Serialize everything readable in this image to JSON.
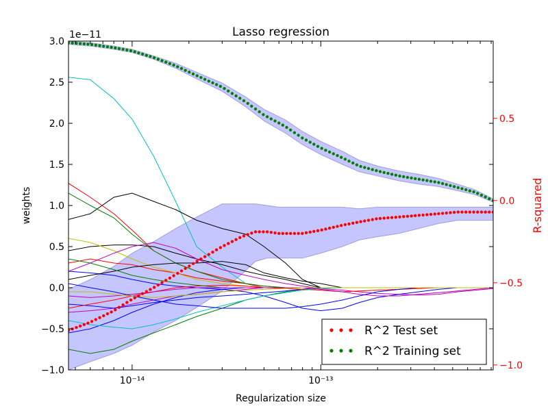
{
  "chart_data": {
    "type": "line",
    "title": "Lasso regression",
    "xlabel": "Regularization size",
    "ylabel_left": "weights",
    "ylabel_right": "R-squared",
    "y_offset_text": "1e−11",
    "x_scale": "log",
    "xlim": [
      4.6e-15,
      8.2e-13
    ],
    "ylim_left": [
      -1.0,
      3.0
    ],
    "ylim_right": [
      -1.03,
      0.97
    ],
    "x_ticks": [
      {
        "value": 1e-14,
        "label": "10⁻¹⁴"
      },
      {
        "value": 1e-13,
        "label": "10⁻¹³"
      }
    ],
    "y_ticks_left": [
      {
        "value": 3.0,
        "label": "3.0"
      },
      {
        "value": 2.5,
        "label": "2.5"
      },
      {
        "value": 2.0,
        "label": "2.0"
      },
      {
        "value": 1.5,
        "label": "1.5"
      },
      {
        "value": 1.0,
        "label": "1.0"
      },
      {
        "value": 0.5,
        "label": "0.5"
      },
      {
        "value": 0.0,
        "label": "0.0"
      },
      {
        "value": -0.5,
        "label": "−0.5"
      },
      {
        "value": -1.0,
        "label": "−1.0"
      }
    ],
    "y_ticks_right": [
      {
        "value": 0.5,
        "label": "0.5"
      },
      {
        "value": 0.0,
        "label": "0.0"
      },
      {
        "value": -0.5,
        "label": "−0.5"
      },
      {
        "value": -1.0,
        "label": "−1.0"
      }
    ],
    "legend": {
      "placement": "lower-right",
      "entries": [
        {
          "label": "R^2 Test set",
          "color": "#ff0000"
        },
        {
          "label": "R^2 Training set",
          "color": "#007f00"
        }
      ]
    },
    "training_r2": {
      "name": "R^2 Training set",
      "color": "#007f00",
      "band_color": "#8080ff",
      "x": [
        4.6e-15,
        6e-15,
        8e-15,
        1e-14,
        1.3e-14,
        1.7e-14,
        2.2e-14,
        3e-14,
        4e-14,
        5e-14,
        6.5e-14,
        8e-14,
        1e-13,
        1.3e-13,
        1.6e-13,
        2e-13,
        2.6e-13,
        3.3e-13,
        4.2e-13,
        5.3e-13,
        6.6e-13,
        8.2e-13
      ],
      "y": [
        0.96,
        0.95,
        0.93,
        0.91,
        0.87,
        0.82,
        0.76,
        0.69,
        0.6,
        0.52,
        0.45,
        0.38,
        0.32,
        0.26,
        0.21,
        0.18,
        0.15,
        0.13,
        0.11,
        0.08,
        0.05,
        0.0
      ],
      "band": [
        0.01,
        0.01,
        0.01,
        0.01,
        0.01,
        0.015,
        0.02,
        0.025,
        0.03,
        0.035,
        0.04,
        0.04,
        0.04,
        0.04,
        0.035,
        0.03,
        0.03,
        0.03,
        0.025,
        0.02,
        0.015,
        0.01
      ]
    },
    "test_r2": {
      "name": "R^2 Test set",
      "color": "#ff0000",
      "band_color": "#8080ff",
      "x": [
        4.6e-15,
        6e-15,
        8e-15,
        1e-14,
        1.3e-14,
        1.7e-14,
        2.2e-14,
        3e-14,
        3.8e-14,
        4.5e-14,
        5.2e-14,
        6e-14,
        7e-14,
        8e-14,
        1e-13,
        1.3e-13,
        1.6e-13,
        2e-13,
        2.6e-13,
        3.3e-13,
        4.2e-13,
        5.3e-13,
        6.6e-13,
        8.2e-13
      ],
      "y": [
        -0.79,
        -0.74,
        -0.67,
        -0.6,
        -0.53,
        -0.45,
        -0.37,
        -0.28,
        -0.22,
        -0.19,
        -0.19,
        -0.2,
        -0.2,
        -0.2,
        -0.18,
        -0.15,
        -0.13,
        -0.11,
        -0.1,
        -0.09,
        -0.08,
        -0.07,
        -0.07,
        -0.07
      ],
      "band_upper": [
        -0.54,
        -0.48,
        -0.4,
        -0.32,
        -0.25,
        -0.17,
        -0.1,
        -0.02,
        -0.02,
        -0.02,
        -0.03,
        -0.04,
        -0.04,
        -0.04,
        -0.04,
        -0.04,
        -0.05,
        -0.04,
        -0.04,
        -0.04,
        -0.04,
        -0.04,
        -0.04,
        -0.04
      ],
      "band_lower": [
        -1.03,
        -0.98,
        -0.93,
        -0.88,
        -0.8,
        -0.73,
        -0.65,
        -0.55,
        -0.45,
        -0.37,
        -0.35,
        -0.35,
        -0.35,
        -0.35,
        -0.32,
        -0.28,
        -0.24,
        -0.22,
        -0.2,
        -0.17,
        -0.14,
        -0.12,
        -0.12,
        -0.12
      ]
    },
    "weight_paths": {
      "unit": "1e-11",
      "x": [
        4.6e-15,
        6e-15,
        8e-15,
        1e-14,
        1.3e-14,
        1.7e-14,
        2.2e-14,
        3e-14,
        4e-14,
        5e-14,
        6.5e-14,
        8e-14,
        1e-13,
        1.3e-13,
        1.6e-13,
        2e-13,
        2.6e-13,
        3.3e-13,
        4.2e-13,
        5.3e-13,
        6.6e-13,
        8.2e-13
      ],
      "series": [
        {
          "color": "#00bfbf",
          "values": [
            2.56,
            2.53,
            2.3,
            2.05,
            1.6,
            1.05,
            0.5,
            0.25,
            0.05,
            0.0,
            0.0,
            0.0,
            0.0,
            0.0,
            0.0,
            0.0,
            0.0,
            0.0,
            0.0,
            0.0,
            0.0,
            0.0
          ]
        },
        {
          "color": "#000000",
          "values": [
            0.83,
            0.9,
            1.1,
            1.15,
            1.05,
            0.95,
            0.82,
            0.72,
            0.65,
            0.5,
            0.3,
            0.1,
            0.0,
            0.0,
            0.0,
            0.0,
            0.0,
            0.0,
            0.0,
            0.0,
            0.0,
            0.0
          ]
        },
        {
          "color": "#000000",
          "values": [
            0.45,
            0.5,
            0.52,
            0.52,
            0.5,
            0.42,
            0.35,
            0.28,
            0.2,
            0.15,
            0.1,
            0.05,
            0.0,
            0.0,
            0.0,
            0.0,
            0.0,
            0.0,
            0.0,
            0.0,
            0.0,
            0.0
          ]
        },
        {
          "color": "#ff0000",
          "values": [
            1.27,
            1.1,
            0.9,
            0.7,
            0.45,
            0.3,
            0.2,
            0.12,
            0.05,
            0.0,
            0.0,
            0.0,
            0.0,
            0.0,
            0.0,
            0.0,
            0.0,
            0.0,
            0.0,
            0.0,
            0.0,
            0.0
          ]
        },
        {
          "color": "#ff0000",
          "values": [
            0.3,
            0.35,
            0.3,
            0.28,
            0.22,
            0.18,
            0.12,
            0.08,
            0.05,
            0.02,
            0.0,
            0.0,
            0.0,
            0.0,
            0.0,
            0.0,
            0.0,
            0.0,
            0.0,
            0.0,
            0.0,
            0.0
          ]
        },
        {
          "color": "#007f00",
          "values": [
            1.15,
            1.0,
            0.85,
            0.65,
            0.45,
            0.3,
            0.2,
            0.1,
            0.05,
            0.02,
            0.0,
            0.0,
            0.0,
            0.0,
            0.0,
            0.0,
            0.0,
            0.0,
            0.0,
            0.0,
            0.0,
            0.0
          ]
        },
        {
          "color": "#007f00",
          "values": [
            -0.75,
            -0.8,
            -0.75,
            -0.65,
            -0.55,
            -0.45,
            -0.35,
            -0.25,
            -0.15,
            -0.1,
            -0.05,
            -0.02,
            0.0,
            0.0,
            0.0,
            0.0,
            0.0,
            0.0,
            0.0,
            0.0,
            0.0,
            0.0
          ]
        },
        {
          "color": "#bfbf00",
          "values": [
            0.6,
            0.55,
            0.45,
            0.35,
            0.25,
            0.18,
            0.1,
            0.05,
            0.02,
            0.0,
            0.0,
            0.0,
            0.0,
            0.0,
            0.0,
            0.0,
            0.0,
            0.0,
            0.0,
            0.0,
            0.0,
            0.0
          ]
        },
        {
          "color": "#bf00bf",
          "values": [
            0.2,
            0.3,
            0.42,
            0.5,
            0.55,
            0.48,
            0.35,
            0.22,
            0.15,
            0.1,
            0.05,
            0.02,
            -0.01,
            -0.03,
            -0.05,
            -0.07,
            -0.08,
            -0.09,
            -0.08,
            -0.05,
            -0.03,
            -0.01
          ]
        },
        {
          "color": "#bf00bf",
          "values": [
            -0.3,
            -0.28,
            -0.25,
            -0.2,
            -0.15,
            -0.1,
            -0.08,
            -0.05,
            -0.02,
            0.0,
            0.0,
            0.0,
            0.0,
            0.0,
            0.0,
            0.0,
            0.0,
            0.0,
            0.0,
            0.0,
            0.0,
            0.0
          ]
        },
        {
          "color": "#0000ff",
          "values": [
            0.2,
            0.18,
            0.15,
            0.1,
            0.05,
            0.02,
            0.0,
            -0.02,
            -0.05,
            -0.1,
            -0.18,
            -0.25,
            -0.28,
            -0.25,
            -0.18,
            -0.12,
            -0.08,
            -0.05,
            -0.02,
            0.0,
            0.0,
            0.0
          ]
        },
        {
          "color": "#0000ff",
          "values": [
            -0.55,
            -0.5,
            -0.4,
            -0.3,
            -0.2,
            -0.12,
            -0.06,
            -0.02,
            0.0,
            0.0,
            0.0,
            0.0,
            0.0,
            0.0,
            0.0,
            0.0,
            0.0,
            0.0,
            0.0,
            0.0,
            0.0,
            0.0
          ]
        },
        {
          "color": "#0000ff",
          "values": [
            -0.2,
            -0.22,
            -0.25,
            -0.22,
            -0.18,
            -0.15,
            -0.12,
            -0.1,
            -0.08,
            -0.06,
            -0.04,
            -0.02,
            0.0,
            0.0,
            0.0,
            0.0,
            0.0,
            0.0,
            0.0,
            0.0,
            0.0,
            0.0
          ]
        },
        {
          "color": "#000000",
          "values": [
            0.1,
            0.15,
            0.2,
            0.25,
            0.28,
            0.3,
            0.3,
            0.32,
            0.28,
            0.18,
            0.12,
            0.08,
            0.05,
            0.0,
            0.0,
            0.0,
            0.0,
            0.0,
            0.0,
            0.0,
            0.0,
            0.0
          ]
        },
        {
          "color": "#ff0000",
          "values": [
            -0.25,
            -0.2,
            -0.15,
            -0.1,
            -0.05,
            0.0,
            0.02,
            0.03,
            0.02,
            0.0,
            -0.01,
            -0.02,
            -0.03,
            -0.05,
            -0.04,
            -0.03,
            -0.02,
            -0.01,
            0.0,
            0.0,
            0.0,
            0.0
          ]
        },
        {
          "color": "#007f00",
          "values": [
            0.35,
            0.3,
            0.22,
            0.15,
            0.1,
            0.06,
            0.03,
            0.0,
            0.0,
            0.0,
            0.0,
            0.0,
            0.0,
            0.0,
            0.0,
            0.0,
            0.0,
            0.0,
            0.0,
            0.0,
            0.0,
            0.0
          ]
        },
        {
          "color": "#00bfbf",
          "values": [
            -0.4,
            -0.45,
            -0.48,
            -0.5,
            -0.45,
            -0.38,
            -0.3,
            -0.22,
            -0.15,
            -0.1,
            -0.06,
            -0.03,
            -0.01,
            0.0,
            0.0,
            0.0,
            0.0,
            0.0,
            0.0,
            0.0,
            0.0,
            0.0
          ]
        },
        {
          "color": "#bf00bf",
          "values": [
            -0.1,
            -0.12,
            -0.1,
            -0.08,
            -0.05,
            -0.02,
            0.0,
            0.0,
            0.0,
            0.0,
            0.0,
            0.0,
            -0.02,
            -0.05,
            -0.08,
            -0.1,
            -0.1,
            -0.08,
            -0.06,
            -0.04,
            -0.02,
            0.0
          ]
        },
        {
          "color": "#0000ff",
          "values": [
            0.05,
            0.0,
            -0.05,
            -0.1,
            -0.15,
            -0.2,
            -0.22,
            -0.25,
            -0.25,
            -0.25,
            -0.25,
            -0.23,
            -0.2,
            -0.15,
            -0.1,
            -0.05,
            -0.02,
            0.0,
            0.0,
            0.0,
            0.0,
            0.0
          ]
        },
        {
          "color": "#bfbf00",
          "values": [
            -0.05,
            -0.05,
            -0.08,
            -0.1,
            -0.12,
            -0.1,
            -0.08,
            -0.05,
            -0.03,
            -0.02,
            -0.01,
            0.0,
            0.0,
            0.0,
            0.0,
            0.0,
            0.0,
            0.0,
            0.0,
            0.0,
            0.0,
            0.0
          ]
        }
      ]
    }
  }
}
